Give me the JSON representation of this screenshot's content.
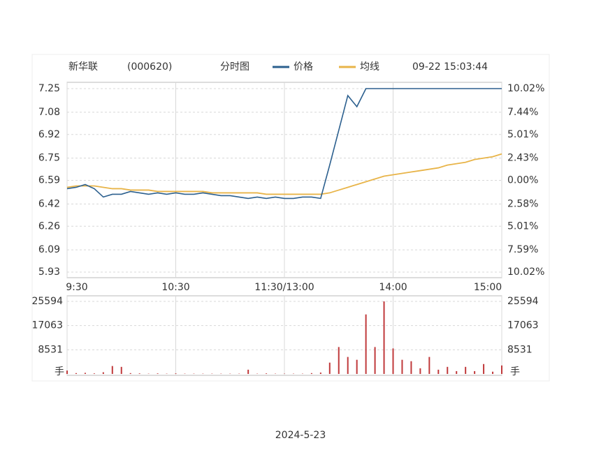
{
  "chart_data": [
    {
      "type": "line",
      "title": "新华联",
      "code": "(000620)",
      "subtitle": "分时图",
      "timestamp": "09-22 15:03:44",
      "x": [
        0,
        5,
        10,
        15,
        20,
        25,
        30,
        35,
        40,
        45,
        50,
        55,
        60,
        65,
        70,
        75,
        80,
        85,
        90,
        95,
        100,
        105,
        110,
        115,
        120,
        125,
        130,
        135,
        140,
        145,
        150,
        155,
        160,
        165,
        170,
        175,
        180,
        185,
        190,
        195,
        200,
        205,
        210,
        215,
        220,
        225,
        230,
        235,
        240
      ],
      "xlim": [
        0,
        240
      ],
      "xticks": [
        {
          "value": 0,
          "label": "9:30"
        },
        {
          "value": 60,
          "label": "10:30"
        },
        {
          "value": 120,
          "label": "11:30/13:00"
        },
        {
          "value": 180,
          "label": "14:00"
        },
        {
          "value": 240,
          "label": "15:00"
        }
      ],
      "ylim": [
        5.93,
        7.25
      ],
      "yticks": [
        7.25,
        7.08,
        6.92,
        6.75,
        6.59,
        6.42,
        6.26,
        6.09,
        5.93
      ],
      "y2lim": [
        -10.02,
        10.02
      ],
      "y2ticks": [
        {
          "value": 10.02,
          "label": "10.02%"
        },
        {
          "value": 7.44,
          "label": "7.44%"
        },
        {
          "value": 5.01,
          "label": "5.01%"
        },
        {
          "value": 2.43,
          "label": "2.43%"
        },
        {
          "value": 0,
          "label": "0.00%"
        },
        {
          "value": -2.58,
          "label": "2.58%"
        },
        {
          "value": -5.01,
          "label": "5.01%"
        },
        {
          "value": -7.59,
          "label": "7.59%"
        },
        {
          "value": -10.02,
          "label": "10.02%"
        }
      ],
      "grid": true,
      "series": [
        {
          "name": "价格",
          "color": "#2b5f8e",
          "values": [
            6.53,
            6.54,
            6.56,
            6.53,
            6.47,
            6.49,
            6.49,
            6.51,
            6.5,
            6.49,
            6.5,
            6.49,
            6.5,
            6.49,
            6.49,
            6.5,
            6.49,
            6.48,
            6.48,
            6.47,
            6.46,
            6.47,
            6.46,
            6.47,
            6.46,
            6.46,
            6.47,
            6.47,
            6.46,
            6.7,
            6.95,
            7.2,
            7.12,
            7.25,
            7.25,
            7.25,
            7.25,
            7.25,
            7.25,
            7.25,
            7.25,
            7.25,
            7.25,
            7.25,
            7.25,
            7.25,
            7.25,
            7.25,
            7.25
          ]
        },
        {
          "name": "均线",
          "color": "#e8b448",
          "values": [
            6.54,
            6.55,
            6.55,
            6.55,
            6.54,
            6.53,
            6.53,
            6.52,
            6.52,
            6.52,
            6.51,
            6.51,
            6.51,
            6.51,
            6.51,
            6.51,
            6.5,
            6.5,
            6.5,
            6.5,
            6.5,
            6.5,
            6.49,
            6.49,
            6.49,
            6.49,
            6.49,
            6.49,
            6.49,
            6.5,
            6.52,
            6.54,
            6.56,
            6.58,
            6.6,
            6.62,
            6.63,
            6.64,
            6.65,
            6.66,
            6.67,
            6.68,
            6.7,
            6.71,
            6.72,
            6.74,
            6.75,
            6.76,
            6.78
          ]
        }
      ]
    },
    {
      "type": "bar",
      "unit_label": "手",
      "color": "#c0393b",
      "x": [
        0,
        5,
        10,
        15,
        20,
        25,
        30,
        35,
        40,
        45,
        50,
        55,
        60,
        65,
        70,
        75,
        80,
        85,
        90,
        95,
        100,
        105,
        110,
        115,
        120,
        125,
        130,
        135,
        140,
        145,
        150,
        155,
        160,
        165,
        170,
        175,
        180,
        185,
        190,
        195,
        200,
        205,
        210,
        215,
        220,
        225,
        230,
        235,
        240
      ],
      "xlim": [
        0,
        240
      ],
      "ylim": [
        0,
        25594
      ],
      "yticks": [
        8531,
        17063,
        25594
      ],
      "values": [
        1200,
        300,
        400,
        200,
        600,
        2800,
        2500,
        300,
        200,
        100,
        200,
        100,
        200,
        100,
        100,
        100,
        100,
        100,
        100,
        100,
        1500,
        100,
        200,
        100,
        100,
        100,
        100,
        300,
        500,
        4000,
        9500,
        6000,
        5000,
        21000,
        9500,
        25594,
        9000,
        5000,
        4500,
        2000,
        6000,
        1500,
        2500,
        1000,
        2500,
        1000,
        3500,
        800,
        3000
      ]
    }
  ],
  "footer": "2024-5-23"
}
